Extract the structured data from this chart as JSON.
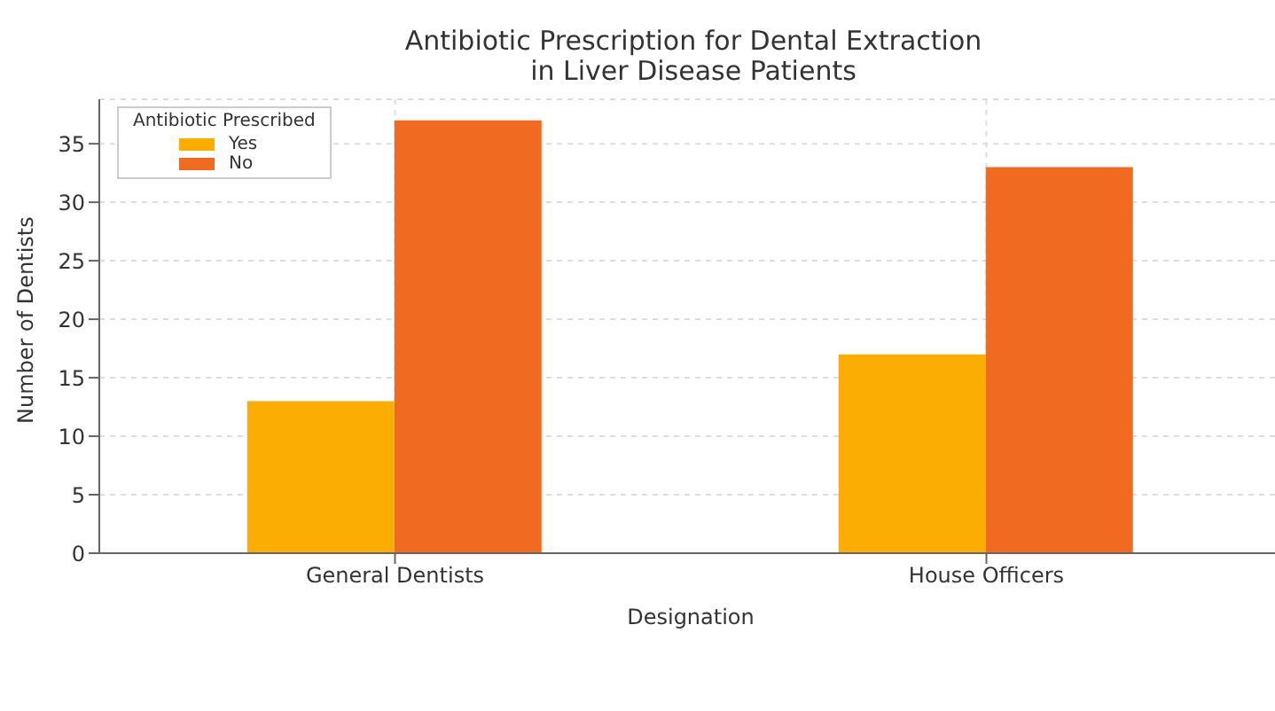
{
  "chart_data": {
    "type": "bar",
    "title": "Antibiotic Prescription for Dental Extraction\nin Liver Disease Patients",
    "xlabel": "Designation",
    "ylabel": "Number of Dentists",
    "legend_title": "Antibiotic Prescribed",
    "categories": [
      "General Dentists",
      "House Officers"
    ],
    "series": [
      {
        "name": "Yes",
        "color": "#fbad03",
        "values": [
          13,
          17
        ]
      },
      {
        "name": "No",
        "color": "#f06a22",
        "values": [
          37,
          33
        ]
      }
    ],
    "ylim": [
      0,
      38.8
    ],
    "yticks": [
      0,
      5,
      10,
      15,
      20,
      25,
      30,
      35
    ],
    "grid": true,
    "legend": "top left"
  }
}
